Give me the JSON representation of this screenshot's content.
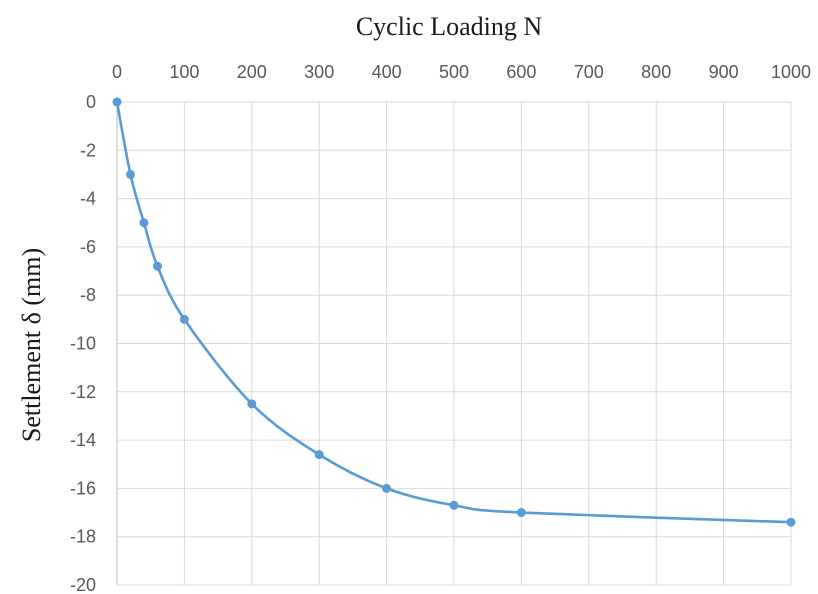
{
  "chart_data": {
    "type": "line",
    "xlabel": "Cyclic Loading N",
    "ylabel": "Settlement δ (mm)",
    "x_axis_position": "top",
    "xlim": [
      0,
      1000
    ],
    "ylim": [
      -20,
      0
    ],
    "x_ticks": [
      "0",
      "100",
      "200",
      "300",
      "400",
      "500",
      "600",
      "700",
      "800",
      "900",
      "1000"
    ],
    "y_ticks": [
      "0",
      "-2",
      "-4",
      "-6",
      "-8",
      "-10",
      "-12",
      "-14",
      "-16",
      "-18",
      "-20"
    ],
    "grid": true,
    "smooth": true,
    "color": "#5b9bd5",
    "series": [
      {
        "x": [
          0,
          20,
          40,
          60,
          100,
          200,
          300,
          400,
          500,
          600,
          1000
        ],
        "y": [
          0,
          -3.0,
          -5.0,
          -6.8,
          -9.0,
          -12.5,
          -14.6,
          -16.0,
          -16.7,
          -17.0,
          -17.4
        ]
      }
    ]
  }
}
